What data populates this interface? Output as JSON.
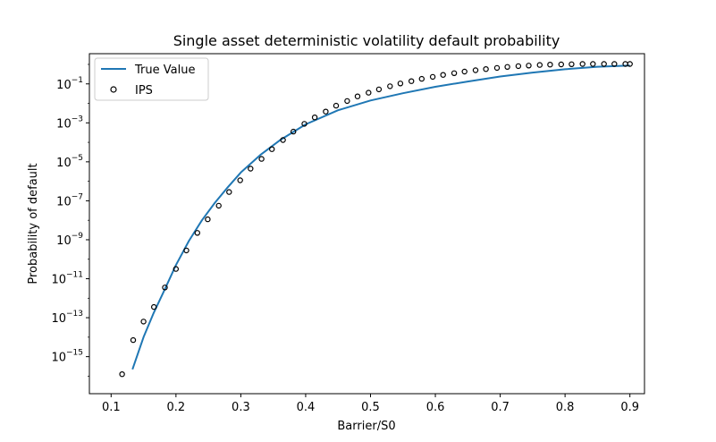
{
  "chart_data": {
    "type": "line",
    "title": "Single asset deterministic volatility default probability",
    "xlabel": "Barrier/S0",
    "ylabel": "Probability of default",
    "y_scale": "log",
    "xlim": [
      0.0665,
      0.9225
    ],
    "ylim_log10": [
      -16.9,
      0.55
    ],
    "grid": false,
    "legend_position": "top-left",
    "x_ticks": [
      {
        "value": 0.1,
        "label": "0.1"
      },
      {
        "value": 0.2,
        "label": "0.2"
      },
      {
        "value": 0.3,
        "label": "0.3"
      },
      {
        "value": 0.4,
        "label": "0.4"
      },
      {
        "value": 0.5,
        "label": "0.5"
      },
      {
        "value": 0.6,
        "label": "0.6"
      },
      {
        "value": 0.7,
        "label": "0.7"
      },
      {
        "value": 0.8,
        "label": "0.8"
      },
      {
        "value": 0.9,
        "label": "0.9"
      }
    ],
    "y_ticks": [
      {
        "exp": -1,
        "base": "10",
        "sup": "−1"
      },
      {
        "exp": -3,
        "base": "10",
        "sup": "−3"
      },
      {
        "exp": -5,
        "base": "10",
        "sup": "−5"
      },
      {
        "exp": -7,
        "base": "10",
        "sup": "−7"
      },
      {
        "exp": -9,
        "base": "10",
        "sup": "−9"
      },
      {
        "exp": -11,
        "base": "10",
        "sup": "−11"
      },
      {
        "exp": -13,
        "base": "10",
        "sup": "−13"
      },
      {
        "exp": -15,
        "base": "10",
        "sup": "−15"
      }
    ],
    "series": [
      {
        "name": "True Value",
        "kind": "line",
        "color": "#1f77b4",
        "x": [
          0.133,
          0.15,
          0.165,
          0.182,
          0.2,
          0.22,
          0.24,
          0.26,
          0.28,
          0.3,
          0.33,
          0.36,
          0.4,
          0.45,
          0.5,
          0.55,
          0.6,
          0.65,
          0.7,
          0.75,
          0.8,
          0.85,
          0.9
        ],
        "log10_y": [
          -15.65,
          -14.0,
          -12.8,
          -11.6,
          -10.3,
          -9.05,
          -8.0,
          -7.1,
          -6.3,
          -5.55,
          -4.65,
          -3.9,
          -3.08,
          -2.35,
          -1.85,
          -1.48,
          -1.15,
          -0.88,
          -0.62,
          -0.42,
          -0.25,
          -0.12,
          -0.06
        ]
      },
      {
        "name": "IPS",
        "kind": "scatter",
        "color": "#000000",
        "x": [
          0.117,
          0.134,
          0.15,
          0.166,
          0.183,
          0.2,
          0.216,
          0.233,
          0.249,
          0.266,
          0.282,
          0.299,
          0.315,
          0.332,
          0.348,
          0.365,
          0.381,
          0.398,
          0.414,
          0.431,
          0.447,
          0.464,
          0.48,
          0.497,
          0.513,
          0.53,
          0.546,
          0.563,
          0.579,
          0.596,
          0.612,
          0.629,
          0.645,
          0.662,
          0.678,
          0.695,
          0.711,
          0.728,
          0.744,
          0.761,
          0.777,
          0.794,
          0.81,
          0.827,
          0.843,
          0.86,
          0.876,
          0.893,
          0.9
        ],
        "log10_y": [
          -15.9,
          -14.15,
          -13.2,
          -12.45,
          -11.45,
          -10.5,
          -9.55,
          -8.65,
          -7.95,
          -7.25,
          -6.55,
          -5.95,
          -5.35,
          -4.85,
          -4.35,
          -3.88,
          -3.45,
          -3.05,
          -2.72,
          -2.42,
          -2.12,
          -1.88,
          -1.64,
          -1.45,
          -1.28,
          -1.12,
          -0.98,
          -0.86,
          -0.74,
          -0.64,
          -0.54,
          -0.45,
          -0.37,
          -0.3,
          -0.24,
          -0.18,
          -0.13,
          -0.09,
          -0.06,
          -0.03,
          -0.01,
          0.0,
          0.01,
          0.02,
          0.02,
          0.02,
          0.02,
          0.02,
          0.02
        ]
      }
    ]
  }
}
